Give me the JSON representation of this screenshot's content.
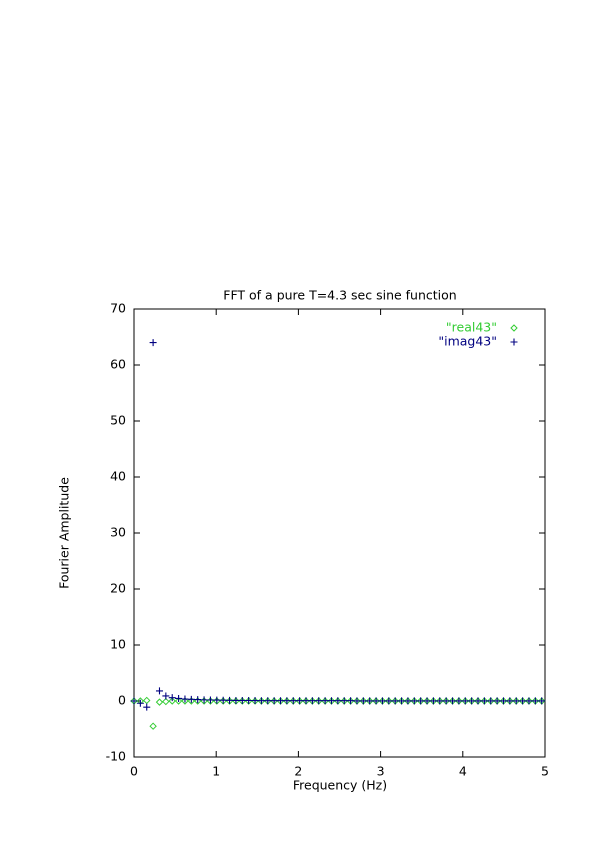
{
  "chart_data": {
    "type": "scatter",
    "title": "FFT of a pure T=4.3 sec sine function",
    "x_label": "Frequency (Hz)",
    "y_label": "Fourier Amplitude",
    "x": [
      0,
      0.0775,
      0.155,
      0.2325,
      0.31,
      0.3875,
      0.465,
      0.5425,
      0.62,
      0.6975,
      0.775,
      0.8525,
      0.93,
      1.0075,
      1.085,
      1.1625,
      1.24,
      1.3175,
      1.395,
      1.4725,
      1.55,
      1.6275,
      1.705,
      1.7825,
      1.86,
      1.9375,
      2.015,
      2.0925,
      2.17,
      2.2475,
      2.325,
      2.4025,
      2.48,
      2.5575,
      2.635,
      2.7125,
      2.79,
      2.8675,
      2.945,
      3.0225,
      3.1,
      3.1775,
      3.255,
      3.3325,
      3.41,
      3.4875,
      3.565,
      3.6425,
      3.72,
      3.7975,
      3.875,
      3.9525,
      4.03,
      4.1075,
      4.185,
      4.2625,
      4.34,
      4.4175,
      4.495,
      4.5725,
      4.65,
      4.7275,
      4.805,
      4.8825,
      4.96
    ],
    "series": [
      {
        "name": "\"real43\"",
        "color": "#33cc33",
        "marker": "diamond",
        "values": [
          0,
          0,
          0.1,
          -4.5,
          -0.2,
          -0.1,
          0,
          0,
          0,
          0,
          0,
          0,
          0,
          0,
          0,
          0,
          0,
          0,
          0,
          0,
          0,
          0,
          0,
          0,
          0,
          0,
          0,
          0,
          0,
          0,
          0,
          0,
          0,
          0,
          0,
          0,
          0,
          0,
          0,
          0,
          0,
          0,
          0,
          0,
          0,
          0,
          0,
          0,
          0,
          0,
          0,
          0,
          0,
          0,
          0,
          0,
          0,
          0,
          0,
          0,
          0,
          0,
          0,
          0,
          0
        ]
      },
      {
        "name": "\"imag43\"",
        "color": "#000080",
        "marker": "plus",
        "values": [
          0,
          -0.4,
          -1.1,
          64,
          1.8,
          0.9,
          0.6,
          0.45,
          0.35,
          0.3,
          0.25,
          0.2,
          0.18,
          0.16,
          0.14,
          0.12,
          0.1,
          0.1,
          0.09,
          0.08,
          0.05,
          0.05,
          0.05,
          0.05,
          0.05,
          0.05,
          0.05,
          0.05,
          0.05,
          0.05,
          0.05,
          0.05,
          0.05,
          0.05,
          0.05,
          0.02,
          0.02,
          0.02,
          0.02,
          0.02,
          0.02,
          0.02,
          0.02,
          0.02,
          0.02,
          0.02,
          0.02,
          0.02,
          0.02,
          0.02,
          0.02,
          0.02,
          0.02,
          0.02,
          0.02,
          0.02,
          0.02,
          0.02,
          0.02,
          0.02,
          0.02,
          0.02,
          0.02,
          0.02,
          0.02
        ]
      }
    ],
    "xlim": [
      0,
      5
    ],
    "xticks": [
      0,
      1,
      2,
      3,
      4,
      5
    ],
    "ylim": [
      -10,
      70
    ],
    "yticks": [
      -10,
      0,
      10,
      20,
      30,
      40,
      50,
      60,
      70
    ],
    "grid": false,
    "legend": "top-right"
  }
}
